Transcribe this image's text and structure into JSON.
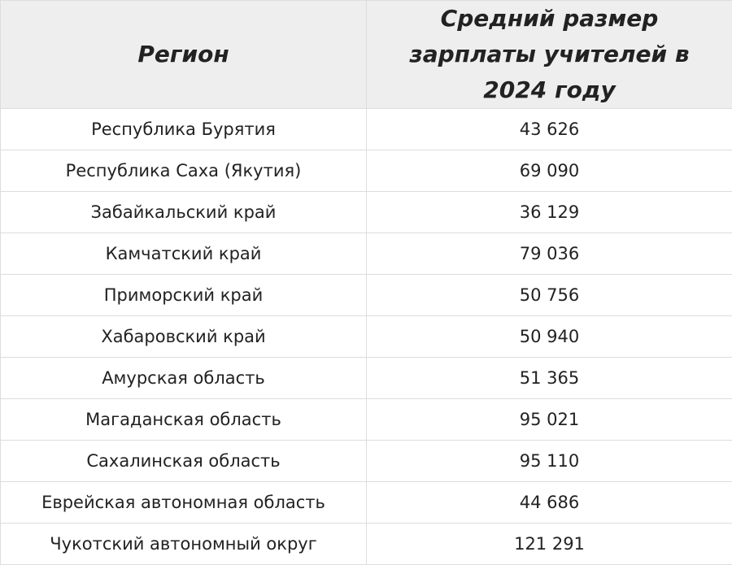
{
  "table": {
    "headers": [
      "Регион",
      "Средний размер зарплаты учителей в 2024 году"
    ],
    "rows": [
      [
        "Республика Бурятия",
        "43 626"
      ],
      [
        "Республика Саха (Якутия)",
        "69 090"
      ],
      [
        "Забайкальский край",
        "36 129"
      ],
      [
        "Камчатский край",
        "79 036"
      ],
      [
        "Приморский край",
        "50 756"
      ],
      [
        "Хабаровский край",
        "50 940"
      ],
      [
        "Амурская область",
        "51 365"
      ],
      [
        "Магаданская область",
        "95 021"
      ],
      [
        "Сахалинская область",
        "95 110"
      ],
      [
        "Еврейская автономная область",
        "44 686"
      ],
      [
        "Чукотский автономный округ",
        "121 291"
      ]
    ]
  }
}
